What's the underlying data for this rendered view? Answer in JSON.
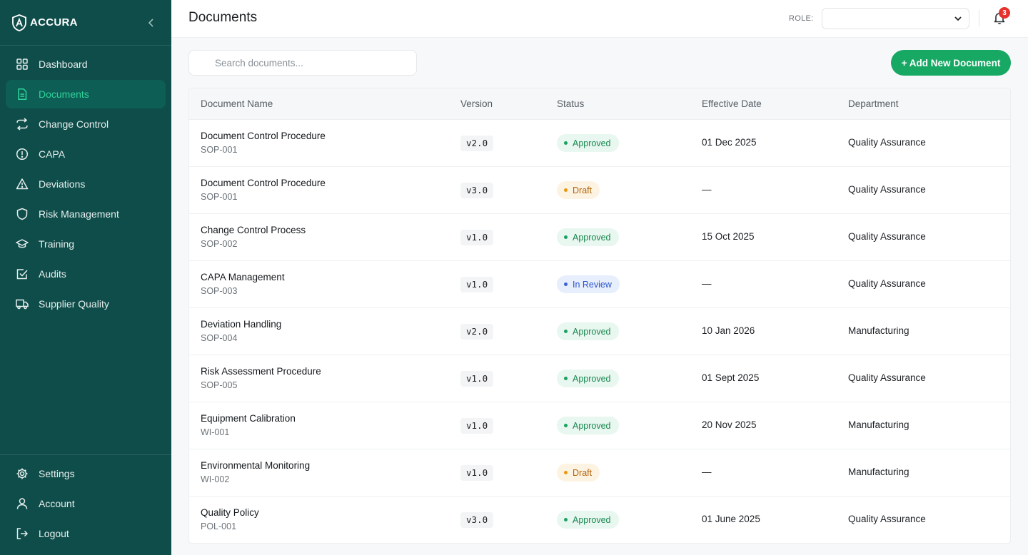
{
  "brand": {
    "name": "ACCURA"
  },
  "sidebar": {
    "items": [
      {
        "label": "Dashboard",
        "icon": "grid-icon"
      },
      {
        "label": "Documents",
        "icon": "document-icon",
        "active": true
      },
      {
        "label": "Change Control",
        "icon": "arrows-swap-icon"
      },
      {
        "label": "CAPA",
        "icon": "alert-circle-icon"
      },
      {
        "label": "Deviations",
        "icon": "warning-triangle-icon"
      },
      {
        "label": "Risk Management",
        "icon": "shield-icon"
      },
      {
        "label": "Training",
        "icon": "graduation-cap-icon"
      },
      {
        "label": "Audits",
        "icon": "checkbox-icon"
      },
      {
        "label": "Supplier Quality",
        "icon": "truck-icon"
      }
    ],
    "bottom": [
      {
        "label": "Settings",
        "icon": "gear-icon"
      },
      {
        "label": "Account",
        "icon": "user-icon"
      },
      {
        "label": "Logout",
        "icon": "logout-icon"
      }
    ]
  },
  "header": {
    "title": "Documents",
    "role_label": "ROLE:",
    "role_value": "",
    "notification_count": "3"
  },
  "toolbar": {
    "search_placeholder": "Search documents...",
    "add_label": "+ Add New Document"
  },
  "table": {
    "headers": [
      "Document Name",
      "Version",
      "Status",
      "Effective Date",
      "Department"
    ],
    "rows": [
      {
        "name": "Document Control Procedure",
        "code": "SOP-001",
        "version": "v2.0",
        "status": "Approved",
        "date": "01 Dec 2025",
        "dept": "Quality Assurance"
      },
      {
        "name": "Document Control Procedure",
        "code": "SOP-001",
        "version": "v3.0",
        "status": "Draft",
        "date": "—",
        "dept": "Quality Assurance"
      },
      {
        "name": "Change Control Process",
        "code": "SOP-002",
        "version": "v1.0",
        "status": "Approved",
        "date": "15 Oct 2025",
        "dept": "Quality Assurance"
      },
      {
        "name": "CAPA Management",
        "code": "SOP-003",
        "version": "v1.0",
        "status": "In Review",
        "date": "—",
        "dept": "Quality Assurance"
      },
      {
        "name": "Deviation Handling",
        "code": "SOP-004",
        "version": "v2.0",
        "status": "Approved",
        "date": "10 Jan 2026",
        "dept": "Manufacturing"
      },
      {
        "name": "Risk Assessment Procedure",
        "code": "SOP-005",
        "version": "v1.0",
        "status": "Approved",
        "date": "01 Sept 2025",
        "dept": "Quality Assurance"
      },
      {
        "name": "Equipment Calibration",
        "code": "WI-001",
        "version": "v1.0",
        "status": "Approved",
        "date": "20 Nov 2025",
        "dept": "Manufacturing"
      },
      {
        "name": "Environmental Monitoring",
        "code": "WI-002",
        "version": "v1.0",
        "status": "Draft",
        "date": "—",
        "dept": "Manufacturing"
      },
      {
        "name": "Quality Policy",
        "code": "POL-001",
        "version": "v3.0",
        "status": "Approved",
        "date": "01 June 2025",
        "dept": "Quality Assurance"
      }
    ]
  },
  "colors": {
    "sidebar_bg": "#0f4d4a",
    "accent": "#17a864",
    "approved": "#18864f",
    "draft": "#b5650c",
    "review": "#2d56c9",
    "badge": "#e5322d"
  }
}
